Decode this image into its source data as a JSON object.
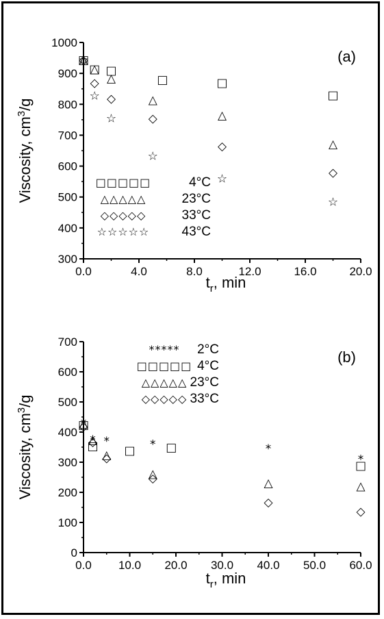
{
  "chart_data": [
    {
      "type": "scatter",
      "panel_label": "(a)",
      "ylabel_text": "Viscosity, cm",
      "ylabel_sup": "3",
      "ylabel_tail": "/g",
      "xlabel_main": "t",
      "xlabel_sub": "r",
      "xlabel_tail": ", min",
      "xlim": [
        0,
        20
      ],
      "ylim": [
        300,
        1000
      ],
      "xticks": [
        "0.0",
        "4.0",
        "8.0",
        "12.0",
        "16.0",
        "20.0"
      ],
      "yticks": [
        "300",
        "400",
        "500",
        "600",
        "700",
        "800",
        "900",
        "1000"
      ],
      "legend_position": "bottom-left",
      "series": [
        {
          "name": "4°C",
          "symbol": "□",
          "x": [
            0,
            0.8,
            2,
            5.7,
            10,
            18
          ],
          "y": [
            945,
            915,
            910,
            880,
            870,
            830
          ]
        },
        {
          "name": "23°C",
          "symbol": "△",
          "x": [
            0,
            0.8,
            2,
            5,
            10,
            18
          ],
          "y": [
            945,
            915,
            885,
            815,
            765,
            672
          ]
        },
        {
          "name": "33°C",
          "symbol": "◇",
          "x": [
            0,
            0.8,
            2,
            5,
            10,
            18
          ],
          "y": [
            945,
            870,
            820,
            755,
            665,
            580
          ]
        },
        {
          "name": "43°C",
          "symbol": "☆",
          "x": [
            0,
            0.8,
            2,
            5,
            10,
            18
          ],
          "y": [
            945,
            828,
            755,
            633,
            560,
            485
          ]
        }
      ]
    },
    {
      "type": "scatter",
      "panel_label": "(b)",
      "ylabel_text": "Viscosity, cm",
      "ylabel_sup": "3",
      "ylabel_tail": "/g",
      "xlabel_main": "t",
      "xlabel_sub": "r",
      "xlabel_tail": ", min",
      "xlim": [
        0,
        60
      ],
      "ylim": [
        0,
        700
      ],
      "xticks": [
        "0.0",
        "10.0",
        "20.0",
        "30.0",
        "40.0",
        "50.0",
        "60.0"
      ],
      "yticks": [
        "0",
        "100",
        "200",
        "300",
        "400",
        "500",
        "600",
        "700"
      ],
      "legend_position": "top-center",
      "series": [
        {
          "name": "2°C",
          "symbol": "*",
          "x": [
            0,
            2,
            5,
            15,
            40,
            60
          ],
          "y": [
            430,
            375,
            370,
            360,
            345,
            310
          ]
        },
        {
          "name": "4°C",
          "symbol": "□",
          "x": [
            0,
            2,
            10,
            19,
            60
          ],
          "y": [
            425,
            355,
            340,
            350,
            290
          ]
        },
        {
          "name": "23°C",
          "symbol": "△",
          "x": [
            0,
            2,
            5,
            15,
            40,
            60
          ],
          "y": [
            430,
            375,
            325,
            262,
            232,
            222
          ]
        },
        {
          "name": "33°C",
          "symbol": "◇",
          "x": [
            0,
            2,
            5,
            15,
            40,
            60
          ],
          "y": [
            420,
            368,
            315,
            248,
            168,
            137
          ]
        }
      ]
    }
  ]
}
